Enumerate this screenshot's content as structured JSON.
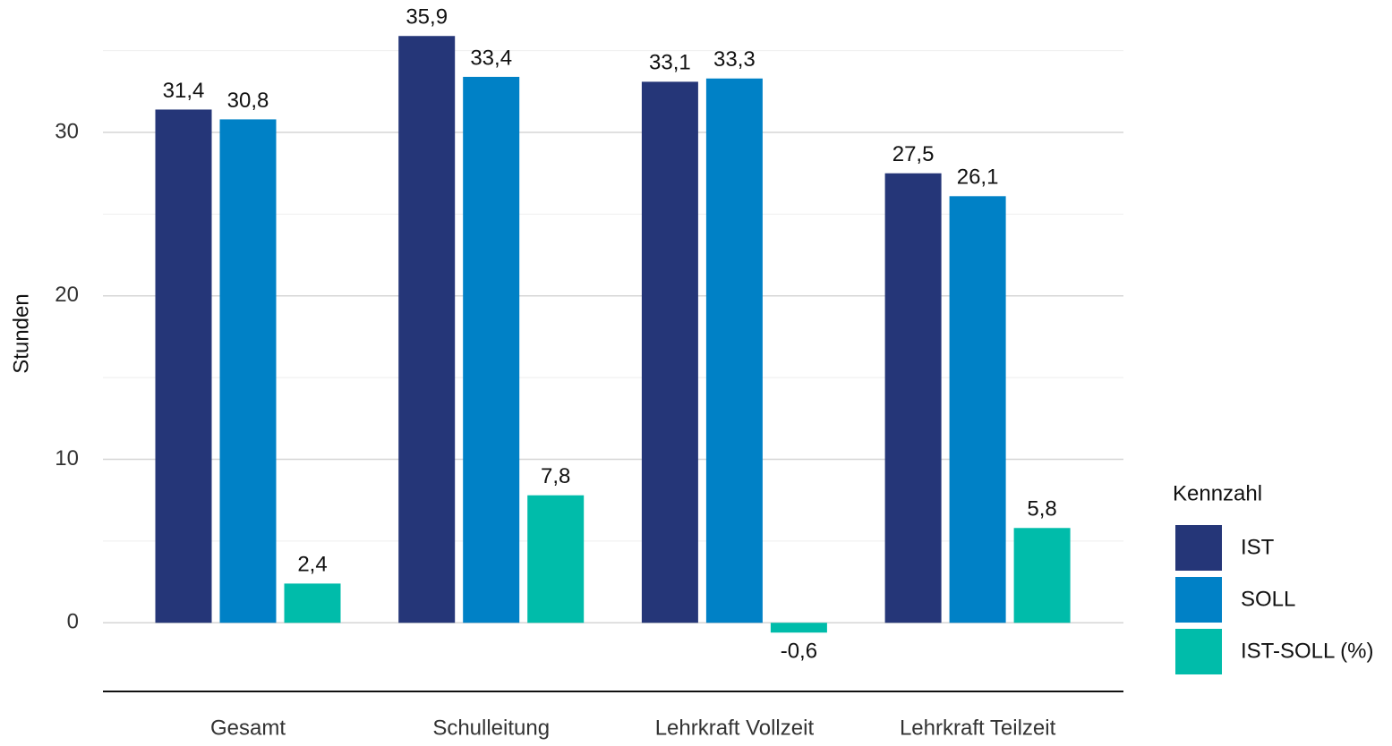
{
  "chart_data": {
    "type": "bar",
    "y_label": "Stunden",
    "categories": [
      "Gesamt",
      "Schulleitung",
      "Lehrkraft Vollzeit",
      "Lehrkraft Teilzeit"
    ],
    "series": [
      {
        "name": "IST",
        "color": "#253678",
        "values": [
          31.4,
          35.9,
          33.1,
          27.5
        ],
        "value_labels": [
          "31,4",
          "35,9",
          "33,1",
          "27,5"
        ]
      },
      {
        "name": "SOLL",
        "color": "#0081c6",
        "values": [
          30.8,
          33.4,
          33.3,
          26.1
        ],
        "value_labels": [
          "30,8",
          "33,4",
          "33,3",
          "26,1"
        ]
      },
      {
        "name": "IST-SOLL (%)",
        "color": "#00bcaa",
        "values": [
          2.4,
          7.8,
          -0.6,
          5.8
        ],
        "value_labels": [
          "2,4",
          "7,8",
          "-0,6",
          "5,8"
        ]
      }
    ],
    "ylim": [
      -4.2,
      37.5
    ],
    "yticks": [
      0,
      10,
      20,
      30
    ],
    "yminor": [
      5,
      15,
      25,
      35
    ],
    "grid": true,
    "legend_title": "Kennzahl",
    "legend": "right"
  }
}
